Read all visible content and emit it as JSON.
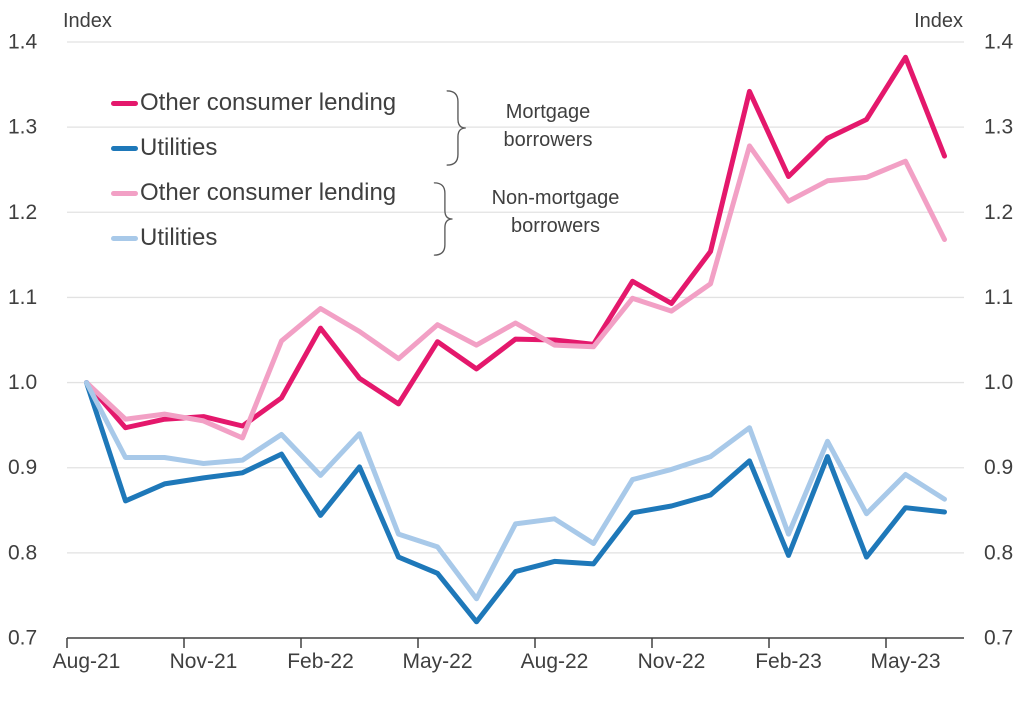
{
  "titles": {
    "index_left": "Index",
    "index_right": "Index"
  },
  "colors": {
    "ocl_mortgage": "#E4186C",
    "utilities_mortgage": "#1E78B9",
    "ocl_nonmortgage": "#F2A0C5",
    "utilities_nonmortgage": "#A8C9E9",
    "gridline": "#E2E2E2",
    "axis": "#404040",
    "text": "#3F3F3F",
    "brace": "#595959"
  },
  "legend": {
    "groups": [
      {
        "label_lines": [
          "Mortgage",
          "borrowers"
        ],
        "items": [
          {
            "label": "Other consumer lending",
            "series_key": "ocl_mortgage"
          },
          {
            "label": "Utilities",
            "series_key": "utilities_mortgage"
          }
        ]
      },
      {
        "label_lines": [
          "Non-mortgage",
          "borrowers"
        ],
        "items": [
          {
            "label": "Other consumer lending",
            "series_key": "ocl_nonmortgage"
          },
          {
            "label": "Utilities",
            "series_key": "utilities_nonmortgage"
          }
        ]
      }
    ]
  },
  "chart_data": {
    "type": "line",
    "title": "",
    "ylabel": "Index",
    "ylim": [
      0.7,
      1.4
    ],
    "yticks": [
      0.7,
      0.8,
      0.9,
      1.0,
      1.1,
      1.2,
      1.3,
      1.4
    ],
    "grid": "horizontal",
    "x": [
      "Aug-21",
      "Sep-21",
      "Oct-21",
      "Nov-21",
      "Dec-21",
      "Jan-22",
      "Feb-22",
      "Mar-22",
      "Apr-22",
      "May-22",
      "Jun-22",
      "Jul-22",
      "Aug-22",
      "Sep-22",
      "Oct-22",
      "Nov-22",
      "Dec-22",
      "Jan-23",
      "Feb-23",
      "Mar-23",
      "Apr-23",
      "May-23",
      "Jun-23"
    ],
    "x_tick_labels": [
      "Aug-21",
      "Nov-21",
      "Feb-22",
      "May-22",
      "Aug-22",
      "Nov-22",
      "Feb-23",
      "May-23"
    ],
    "x_tick_every": 3,
    "legend_position": "upper-left",
    "series": [
      {
        "name": "Other consumer lending (Mortgage borrowers)",
        "key": "ocl_mortgage",
        "values": [
          1.0,
          0.947,
          0.957,
          0.96,
          0.949,
          0.982,
          1.064,
          1.005,
          0.975,
          1.048,
          1.016,
          1.051,
          1.05,
          1.045,
          1.119,
          1.093,
          1.154,
          1.342,
          1.242,
          1.287,
          1.309,
          1.382,
          1.266
        ]
      },
      {
        "name": "Other consumer lending (Non-mortgage borrowers)",
        "key": "ocl_nonmortgage",
        "values": [
          1.0,
          0.957,
          0.963,
          0.955,
          0.935,
          1.049,
          1.087,
          1.06,
          1.028,
          1.068,
          1.044,
          1.07,
          1.044,
          1.042,
          1.099,
          1.084,
          1.116,
          1.278,
          1.213,
          1.237,
          1.241,
          1.26,
          1.168
        ]
      },
      {
        "name": "Utilities (Mortgage borrowers)",
        "key": "utilities_mortgage",
        "values": [
          1.0,
          0.861,
          0.881,
          0.888,
          0.894,
          0.916,
          0.844,
          0.901,
          0.795,
          0.776,
          0.719,
          0.778,
          0.79,
          0.787,
          0.847,
          0.855,
          0.868,
          0.908,
          0.797,
          0.913,
          0.795,
          0.853,
          0.848
        ]
      },
      {
        "name": "Utilities (Non-mortgage borrowers)",
        "key": "utilities_nonmortgage",
        "values": [
          1.0,
          0.912,
          0.912,
          0.905,
          0.909,
          0.939,
          0.891,
          0.94,
          0.822,
          0.807,
          0.746,
          0.834,
          0.84,
          0.811,
          0.886,
          0.898,
          0.913,
          0.947,
          0.822,
          0.931,
          0.846,
          0.892,
          0.863
        ]
      }
    ]
  }
}
